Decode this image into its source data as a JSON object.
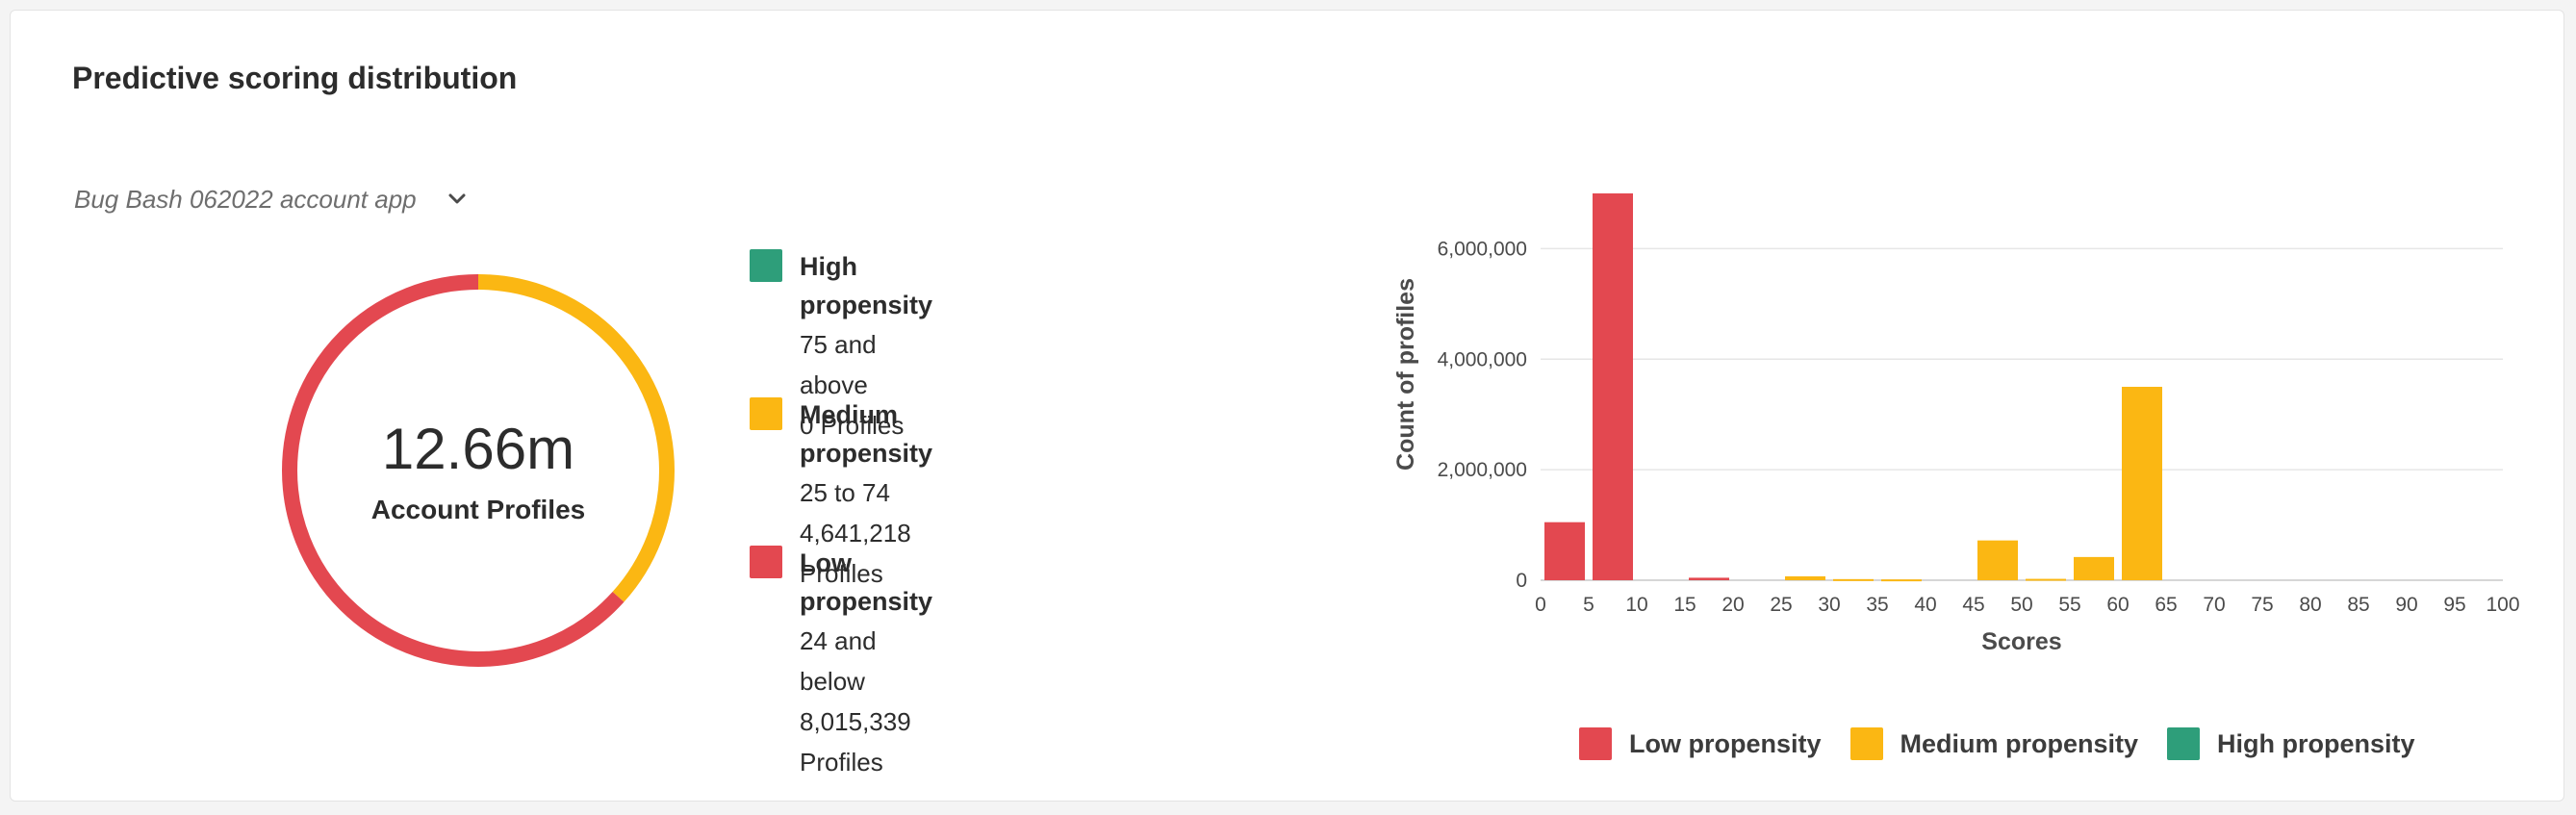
{
  "card": {
    "title": "Predictive scoring distribution",
    "selector": {
      "value": "Bug Bash 062022 account app",
      "icon": "chevron-down-icon"
    }
  },
  "colors": {
    "high": "#2e9e7a",
    "medium": "#fbb713",
    "low": "#e34850",
    "grid": "#e6e6e6"
  },
  "donut": {
    "total_label": "12.66m",
    "caption": "Account Profiles"
  },
  "legend": [
    {
      "name": "High propensity",
      "range": "75 and above",
      "count": "0 Profiles",
      "color": "#2e9e7a"
    },
    {
      "name": "Medium propensity",
      "range": "25 to 74",
      "count": "4,641,218 Profiles",
      "color": "#fbb713"
    },
    {
      "name": "Low propensity",
      "range": "24 and below",
      "count": "8,015,339 Profiles",
      "color": "#e34850"
    }
  ],
  "chart_data": [
    {
      "type": "pie",
      "variant": "donut",
      "categories": [
        "High propensity",
        "Medium propensity",
        "Low propensity"
      ],
      "values": [
        0,
        4641218,
        8015339
      ],
      "center_text": "12.66m",
      "center_caption": "Account Profiles"
    },
    {
      "type": "bar",
      "xlabel": "Scores",
      "ylabel": "Count of profiles",
      "xlim": [
        0,
        100
      ],
      "ylim": [
        0,
        7000000
      ],
      "x_ticks": [
        "0",
        "5",
        "10",
        "15",
        "20",
        "25",
        "30",
        "35",
        "40",
        "45",
        "50",
        "55",
        "60",
        "65",
        "70",
        "75",
        "80",
        "85",
        "90",
        "95",
        "100"
      ],
      "y_ticks": [
        {
          "value": 0,
          "label": "0"
        },
        {
          "value": 2000000,
          "label": "2,000,000"
        },
        {
          "value": 4000000,
          "label": "4,000,000"
        },
        {
          "value": 6000000,
          "label": "6,000,000"
        }
      ],
      "grid": true,
      "series": [
        {
          "name": "Low propensity",
          "bins": [
            [
              0,
              5
            ],
            [
              5,
              10
            ],
            [
              15,
              20
            ]
          ],
          "values": [
            1050000,
            7000000,
            45000
          ]
        },
        {
          "name": "Medium propensity",
          "bins": [
            [
              25,
              30
            ],
            [
              30,
              35
            ],
            [
              35,
              40
            ],
            [
              45,
              50
            ],
            [
              50,
              55
            ],
            [
              55,
              60
            ],
            [
              60,
              65
            ]
          ],
          "values": [
            70000,
            20000,
            15000,
            720000,
            25000,
            420000,
            3500000
          ]
        },
        {
          "name": "High propensity",
          "bins": [],
          "values": []
        }
      ],
      "legend": [
        "Low propensity",
        "Medium propensity",
        "High propensity"
      ],
      "legend_position": "bottom"
    }
  ]
}
